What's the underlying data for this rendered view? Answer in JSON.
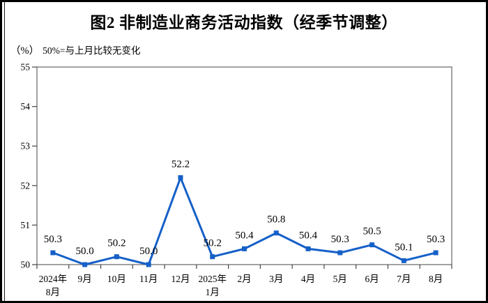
{
  "figure": {
    "title": "图2 非制造业商务活动指数（经季节调整）",
    "unit_label": "（%）",
    "note": "50%=与上月比较无变化"
  },
  "chart_data": {
    "type": "line",
    "title": "图2 非制造业商务活动指数（经季节调整）",
    "subtitle": "（%）50%=与上月比较无变化",
    "categories": [
      [
        "2024年",
        "8月"
      ],
      [
        "9月"
      ],
      [
        "10月"
      ],
      [
        "11月"
      ],
      [
        "12月"
      ],
      [
        "2025年",
        "1月"
      ],
      [
        "2月"
      ],
      [
        "3月"
      ],
      [
        "4月"
      ],
      [
        "5月"
      ],
      [
        "6月"
      ],
      [
        "7月"
      ],
      [
        "8月"
      ]
    ],
    "values": [
      50.3,
      50.0,
      50.2,
      50.0,
      52.2,
      50.2,
      50.4,
      50.8,
      50.4,
      50.3,
      50.5,
      50.1,
      50.3
    ],
    "point_labels": [
      "50.3",
      "50.0",
      "50.2",
      "50.0",
      "52.2",
      "50.2",
      "50.4",
      "50.8",
      "50.4",
      "50.3",
      "50.5",
      "50.1",
      "50.3"
    ],
    "ylim": [
      50,
      55
    ],
    "yticks": [
      50,
      51,
      52,
      53,
      54,
      55
    ],
    "xlabel": "",
    "ylabel": "",
    "grid": false,
    "legend_position": "none",
    "marker": "square",
    "line_color": "#1560C8",
    "axis_color": "#444444",
    "plot_border_color": "#666666",
    "label_color": "#000000"
  }
}
